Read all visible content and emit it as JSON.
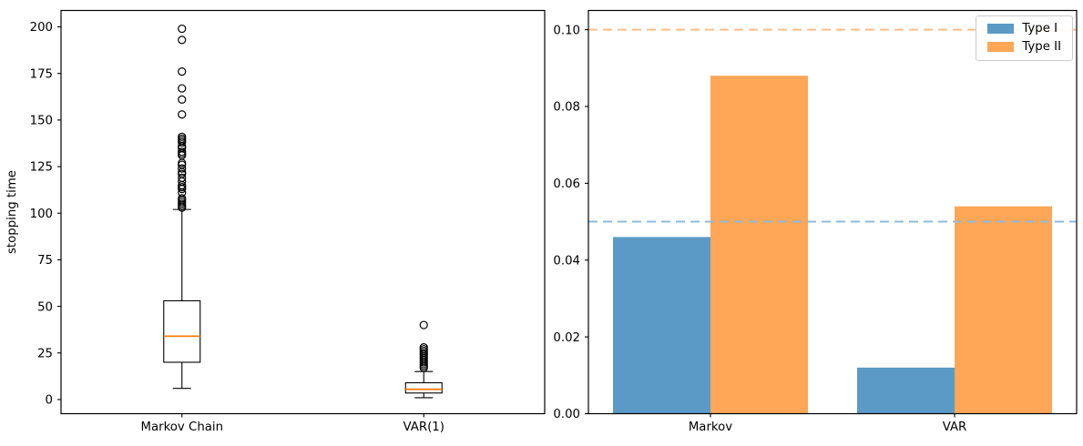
{
  "figure": {
    "background": "#ffffff",
    "text_color": "#000000",
    "spine_color": "#000000"
  },
  "chart_data": [
    {
      "type": "boxplot",
      "title": "",
      "xlabel": "",
      "ylabel": "stopping time",
      "ylim": [
        -7.6,
        208.8
      ],
      "yticks": [
        0,
        25,
        50,
        75,
        100,
        125,
        150,
        175,
        200
      ],
      "grid": false,
      "categories": [
        "Markov Chain",
        "VAR(1)"
      ],
      "box_edge_color": "#000000",
      "median_color": "#ff7f0e",
      "boxes": [
        {
          "category": "Markov Chain",
          "whisker_low": 6,
          "q1": 20,
          "median": 34,
          "q3": 53,
          "whisker_high": 102,
          "outliers": [
            103,
            104,
            105,
            106,
            107,
            108,
            111,
            113,
            114,
            115,
            117,
            119,
            121,
            122,
            124,
            126,
            127,
            131,
            132,
            133,
            135,
            136,
            138,
            139,
            140,
            141,
            153,
            161,
            167,
            176,
            193,
            199
          ]
        },
        {
          "category": "VAR(1)",
          "whisker_low": 1,
          "q1": 3.5,
          "median": 5.5,
          "q3": 9,
          "whisker_high": 15,
          "outliers": [
            17,
            18,
            19,
            20,
            21,
            22,
            23,
            24,
            25,
            26,
            27,
            28,
            40
          ]
        }
      ]
    },
    {
      "type": "bar",
      "title": "",
      "xlabel": "",
      "ylabel": "",
      "ylim": [
        0,
        0.105
      ],
      "yticks": [
        0.0,
        0.02,
        0.04,
        0.06,
        0.08,
        0.1
      ],
      "grid": false,
      "legend_position": "upper right",
      "categories": [
        "Markov",
        "VAR"
      ],
      "series": [
        {
          "name": "Type I",
          "color": "#5b9ac6",
          "values": [
            0.046,
            0.012
          ],
          "ref_line": 0.05,
          "ref_line_color": "#8fbbd9",
          "ref_line_style": "dashed"
        },
        {
          "name": "Type II",
          "color": "#ffa657",
          "values": [
            0.088,
            0.054
          ],
          "ref_line": 0.1,
          "ref_line_color": "#ffbf87",
          "ref_line_style": "dashed"
        }
      ]
    }
  ]
}
